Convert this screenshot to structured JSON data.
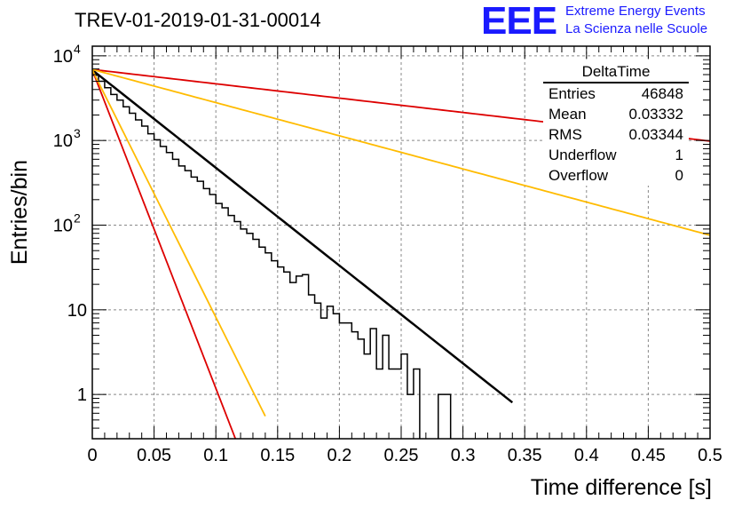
{
  "title": "TREV-01-2019-01-31-00014",
  "logo": {
    "mark": "EEE",
    "line1": "Extreme Energy Events",
    "line2": "La Scienza nelle Scuole",
    "color": "#1a1aff"
  },
  "stats": {
    "name": "DeltaTime",
    "rows": [
      {
        "label": "Entries",
        "value": "46848"
      },
      {
        "label": "Mean",
        "value": "0.03332"
      },
      {
        "label": "RMS",
        "value": "0.03344"
      },
      {
        "label": "Underflow",
        "value": "1"
      },
      {
        "label": "Overflow",
        "value": "0"
      }
    ]
  },
  "chart_data": {
    "type": "line",
    "title": "TREV-01-2019-01-31-00014",
    "xlabel": "Time difference [s]",
    "ylabel": "Entries/bin",
    "xlim": [
      0,
      0.5
    ],
    "ylim": [
      0.3,
      13000
    ],
    "yscale": "log",
    "grid": true,
    "xticks": [
      "0",
      "0.05",
      "0.1",
      "0.15",
      "0.2",
      "0.25",
      "0.3",
      "0.35",
      "0.4",
      "0.45",
      "0.5"
    ],
    "yticks": [
      {
        "value": 1,
        "label": "1"
      },
      {
        "value": 10,
        "label": "10"
      },
      {
        "value": 100,
        "label": "10",
        "exp": "2"
      },
      {
        "value": 1000,
        "label": "10",
        "exp": "3"
      },
      {
        "value": 10000,
        "label": "10",
        "exp": "4"
      }
    ],
    "histogram": {
      "bin_width": 0.005,
      "color": "#000000",
      "values": [
        5900,
        5000,
        4200,
        3500,
        3000,
        2500,
        2100,
        1750,
        1480,
        1200,
        1020,
        850,
        720,
        600,
        500,
        440,
        370,
        330,
        270,
        230,
        180,
        160,
        130,
        110,
        90,
        80,
        68,
        55,
        47,
        38,
        32,
        28,
        21,
        25,
        26,
        15,
        12,
        8,
        11,
        9,
        7,
        7,
        5.5,
        4.5,
        3,
        6,
        2,
        5,
        2,
        2,
        3,
        1,
        2,
        0,
        0,
        0,
        1,
        1,
        0,
        0,
        0,
        0,
        0,
        0,
        0,
        0,
        0,
        0,
        0,
        0,
        0,
        0,
        0,
        0,
        0,
        0,
        0,
        0,
        0,
        0,
        0,
        0,
        0,
        0,
        0,
        0,
        0,
        0,
        0,
        0,
        0,
        0,
        0,
        0,
        0,
        0,
        0,
        0,
        0,
        0
      ]
    },
    "series": [
      {
        "color": "#000000",
        "kind": "exp",
        "a": 6800,
        "tau": 0.0376,
        "x_end": 0.34
      },
      {
        "color": "#dd0000",
        "kind": "exp",
        "a": 6800,
        "tau": 0.01155,
        "x_end": 0.12
      },
      {
        "color": "#ffbb00",
        "kind": "exp",
        "a": 6800,
        "tau": 0.01487,
        "x_end": 0.14
      },
      {
        "color": "#dd0000",
        "kind": "exp",
        "a": 6900,
        "tau": 0.2566,
        "x_end": 0.5
      },
      {
        "color": "#ffbb00",
        "kind": "exp",
        "a": 6900,
        "tau": 0.1109,
        "x_end": 0.5
      }
    ]
  }
}
